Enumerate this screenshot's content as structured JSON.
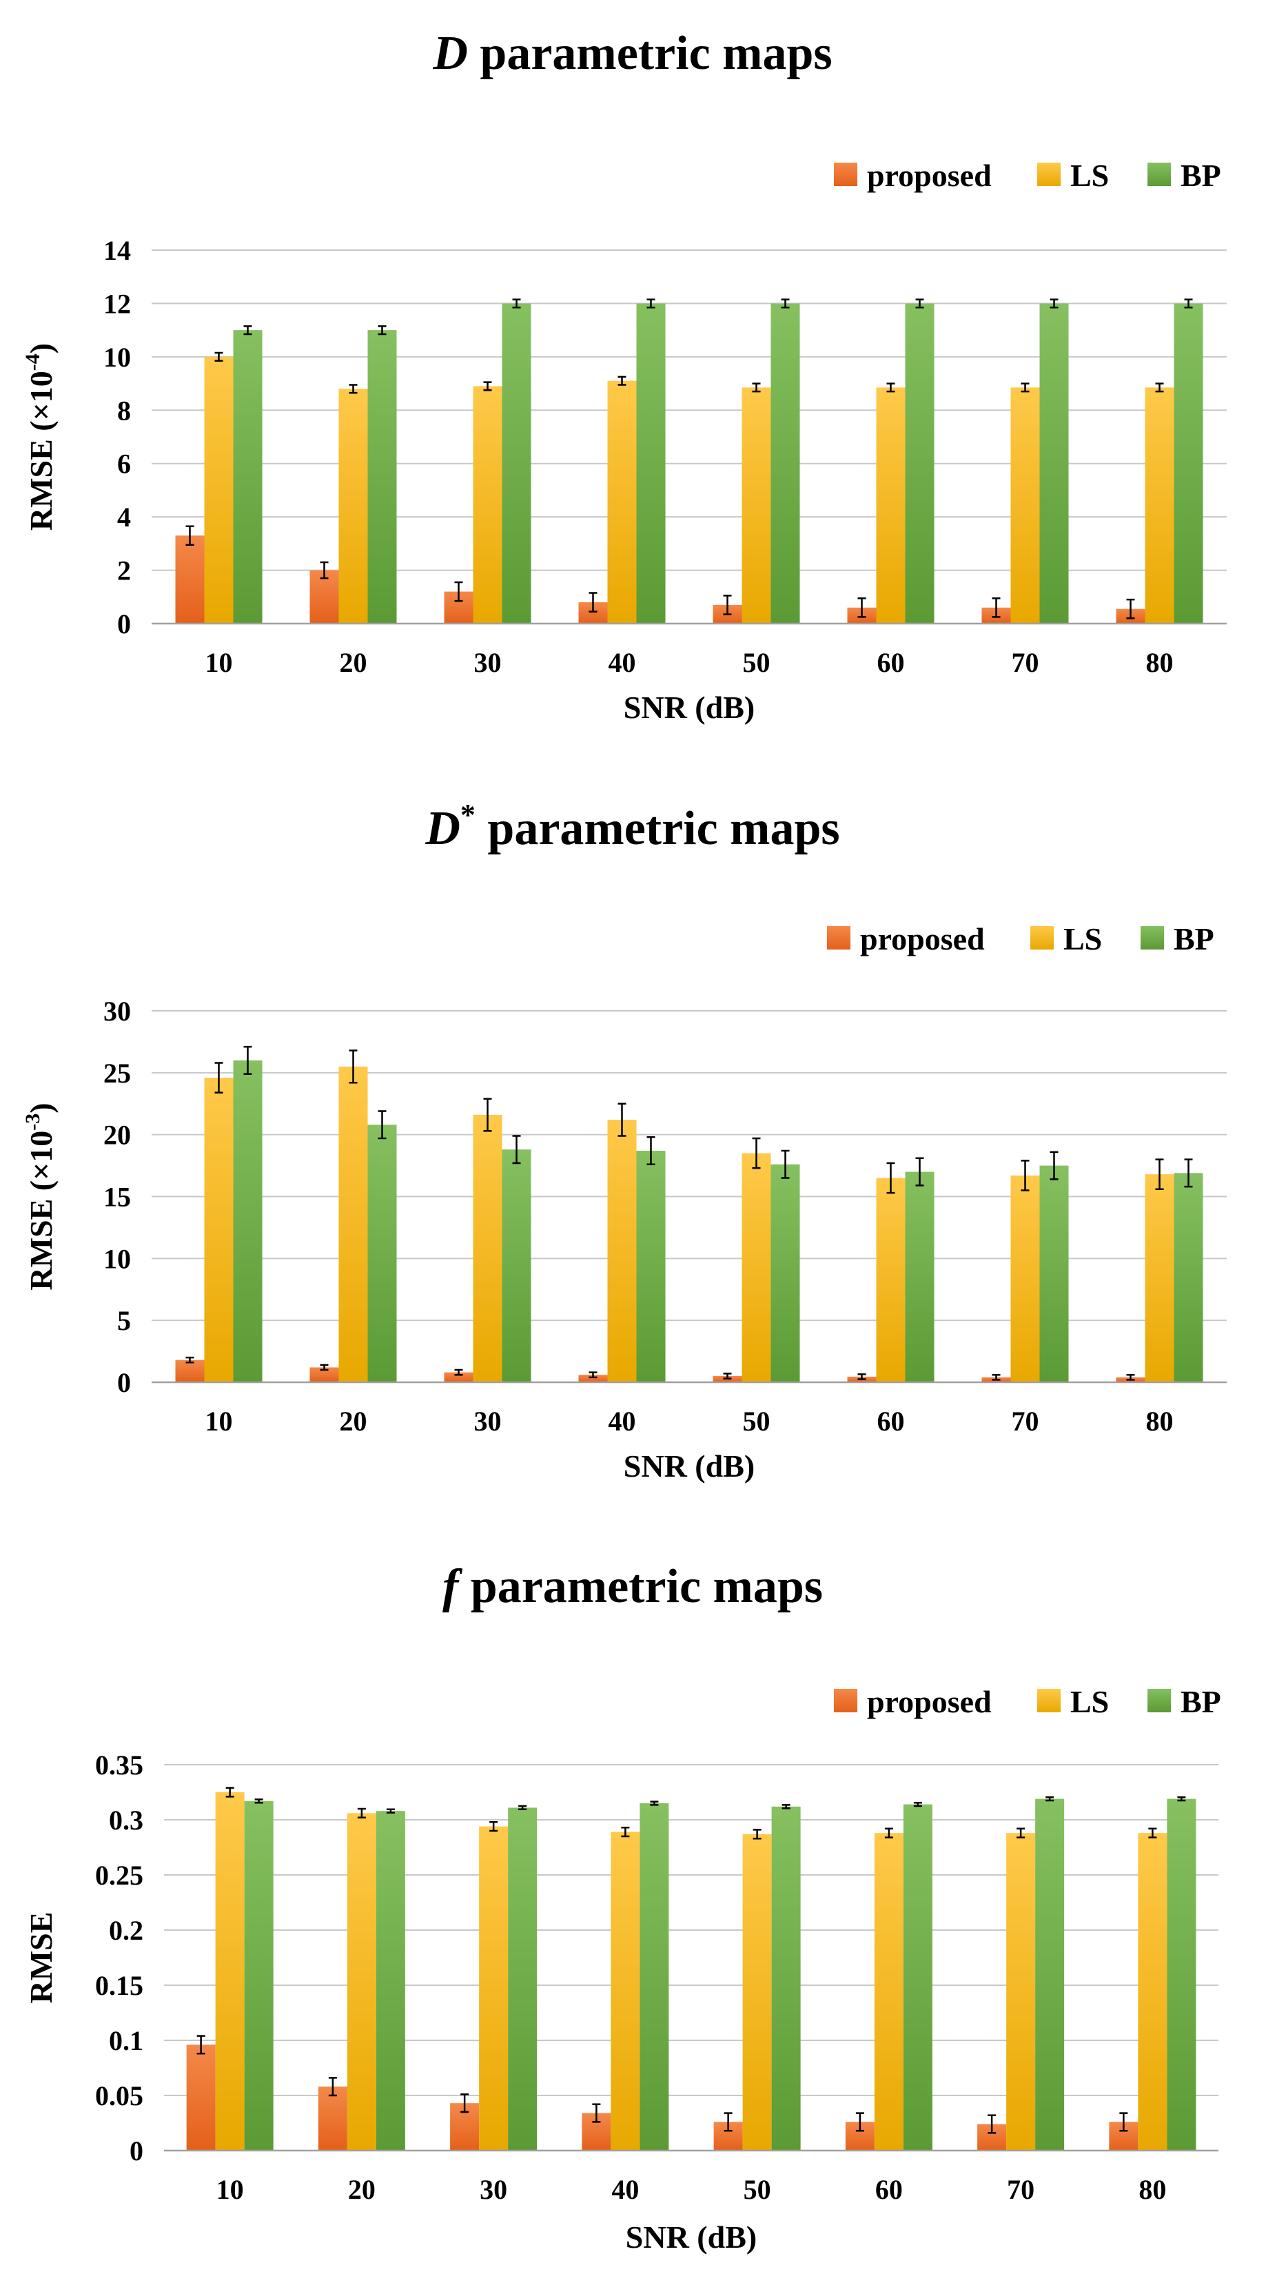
{
  "colors": {
    "proposed": "#f07a2d",
    "LS": "#ffc000",
    "BP": "#70ad47"
  },
  "chart_data": [
    {
      "type": "bar",
      "title_prefix": "D",
      "title_sup": "",
      "title_rest": " parametric maps",
      "ylabel_main": "RMSE (×10",
      "ylabel_exp": "-4",
      "ylabel_close": ")",
      "xlabel": "SNR (dB)",
      "categories": [
        "10",
        "20",
        "30",
        "40",
        "50",
        "60",
        "70",
        "80"
      ],
      "ylim": [
        0,
        14
      ],
      "yticks": [
        0,
        2,
        4,
        6,
        8,
        10,
        12,
        14
      ],
      "ytick_labels": [
        "0",
        "2",
        "4",
        "6",
        "8",
        "10",
        "12",
        "14"
      ],
      "legend": [
        "proposed",
        "LS",
        "BP"
      ],
      "series": [
        {
          "name": "proposed",
          "values": [
            3.3,
            2.0,
            1.2,
            0.8,
            0.7,
            0.6,
            0.6,
            0.55
          ],
          "errors": [
            0.35,
            0.3,
            0.35,
            0.35,
            0.35,
            0.35,
            0.35,
            0.35
          ]
        },
        {
          "name": "LS",
          "values": [
            10.0,
            8.8,
            8.9,
            9.1,
            8.85,
            8.85,
            8.85,
            8.85
          ],
          "errors": [
            0.15,
            0.15,
            0.15,
            0.15,
            0.15,
            0.15,
            0.15,
            0.15
          ]
        },
        {
          "name": "BP",
          "values": [
            11.0,
            11.0,
            12.0,
            12.0,
            12.0,
            12.0,
            12.0,
            12.0
          ],
          "errors": [
            0.15,
            0.15,
            0.15,
            0.15,
            0.15,
            0.15,
            0.15,
            0.15
          ]
        }
      ]
    },
    {
      "type": "bar",
      "title_prefix": "D",
      "title_sup": "*",
      "title_rest": " parametric maps",
      "ylabel_main": "RMSE (×10",
      "ylabel_exp": "-3",
      "ylabel_close": ")",
      "xlabel": "SNR (dB)",
      "categories": [
        "10",
        "20",
        "30",
        "40",
        "50",
        "60",
        "70",
        "80"
      ],
      "ylim": [
        0,
        30
      ],
      "yticks": [
        0,
        5,
        10,
        15,
        20,
        25,
        30
      ],
      "ytick_labels": [
        "0",
        "5",
        "10",
        "15",
        "20",
        "25",
        "30"
      ],
      "legend": [
        "proposed",
        "LS",
        "BP"
      ],
      "series": [
        {
          "name": "proposed",
          "values": [
            1.8,
            1.2,
            0.8,
            0.6,
            0.5,
            0.45,
            0.4,
            0.4
          ],
          "errors": [
            0.2,
            0.2,
            0.2,
            0.2,
            0.2,
            0.2,
            0.2,
            0.2
          ]
        },
        {
          "name": "LS",
          "values": [
            24.6,
            25.5,
            21.6,
            21.2,
            18.5,
            16.5,
            16.7,
            16.8
          ],
          "errors": [
            1.2,
            1.3,
            1.3,
            1.3,
            1.2,
            1.2,
            1.2,
            1.2
          ]
        },
        {
          "name": "BP",
          "values": [
            26.0,
            20.8,
            18.8,
            18.7,
            17.6,
            17.0,
            17.5,
            16.9
          ],
          "errors": [
            1.1,
            1.1,
            1.1,
            1.1,
            1.1,
            1.1,
            1.1,
            1.1
          ]
        }
      ]
    },
    {
      "type": "bar",
      "title_prefix": "f",
      "title_sup": "",
      "title_rest": " parametric maps",
      "ylabel_main": "RMSE",
      "ylabel_exp": "",
      "ylabel_close": "",
      "xlabel": "SNR (dB)",
      "categories": [
        "10",
        "20",
        "30",
        "40",
        "50",
        "60",
        "70",
        "80"
      ],
      "ylim": [
        0,
        0.35
      ],
      "yticks": [
        0,
        0.05,
        0.1,
        0.15,
        0.2,
        0.25,
        0.3,
        0.35
      ],
      "ytick_labels": [
        "0",
        "0.05",
        "0.1",
        "0.15",
        "0.2",
        "0.25",
        "0.3",
        "0.35"
      ],
      "legend": [
        "proposed",
        "LS",
        "BP"
      ],
      "series": [
        {
          "name": "proposed",
          "values": [
            0.096,
            0.058,
            0.043,
            0.034,
            0.026,
            0.026,
            0.024,
            0.026
          ],
          "errors": [
            0.008,
            0.008,
            0.008,
            0.008,
            0.008,
            0.008,
            0.008,
            0.008
          ]
        },
        {
          "name": "LS",
          "values": [
            0.325,
            0.306,
            0.294,
            0.289,
            0.287,
            0.288,
            0.288,
            0.288
          ],
          "errors": [
            0.004,
            0.004,
            0.004,
            0.004,
            0.004,
            0.004,
            0.004,
            0.004
          ]
        },
        {
          "name": "BP",
          "values": [
            0.317,
            0.308,
            0.311,
            0.315,
            0.312,
            0.314,
            0.319,
            0.319
          ],
          "errors": [
            0.0015,
            0.0015,
            0.0015,
            0.0015,
            0.0015,
            0.0015,
            0.0015,
            0.0015
          ]
        }
      ]
    }
  ]
}
